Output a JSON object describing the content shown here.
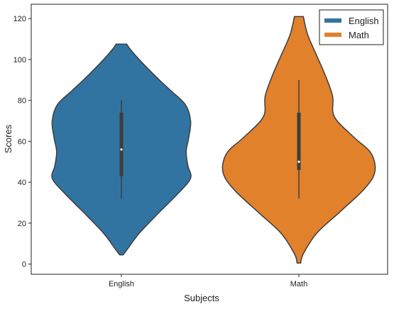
{
  "chart_data": {
    "type": "violin",
    "title": "",
    "xlabel": "Subjects",
    "ylabel": "Scores",
    "ylim": [
      -5,
      127
    ],
    "yticks": [
      0,
      20,
      40,
      60,
      80,
      100,
      120
    ],
    "categories": [
      "English",
      "Math"
    ],
    "legend": {
      "placement": "top-right",
      "entries": [
        "English",
        "Math"
      ]
    },
    "grid": false,
    "series": [
      {
        "name": "English",
        "color": "#3274a1",
        "min": 32,
        "q1": 43,
        "median": 56,
        "q3": 74,
        "max": 80,
        "density": [
          [
            4.5,
            0.02
          ],
          [
            8,
            0.08
          ],
          [
            15,
            0.2
          ],
          [
            25,
            0.42
          ],
          [
            35,
            0.65
          ],
          [
            42,
            0.78
          ],
          [
            48,
            0.75
          ],
          [
            55,
            0.73
          ],
          [
            62,
            0.76
          ],
          [
            70,
            0.78
          ],
          [
            78,
            0.72
          ],
          [
            85,
            0.55
          ],
          [
            92,
            0.38
          ],
          [
            100,
            0.2
          ],
          [
            105,
            0.1
          ],
          [
            107.5,
            0.06
          ]
        ]
      },
      {
        "name": "Math",
        "color": "#e1812c",
        "min": 32,
        "q1": 46,
        "median": 50,
        "q3": 74,
        "max": 90,
        "density": [
          [
            0.5,
            0.02
          ],
          [
            5,
            0.05
          ],
          [
            15,
            0.2
          ],
          [
            25,
            0.45
          ],
          [
            35,
            0.7
          ],
          [
            42,
            0.83
          ],
          [
            48,
            0.86
          ],
          [
            55,
            0.8
          ],
          [
            62,
            0.62
          ],
          [
            72,
            0.4
          ],
          [
            82,
            0.38
          ],
          [
            92,
            0.3
          ],
          [
            102,
            0.2
          ],
          [
            112,
            0.1
          ],
          [
            121,
            0.05
          ]
        ]
      }
    ]
  }
}
